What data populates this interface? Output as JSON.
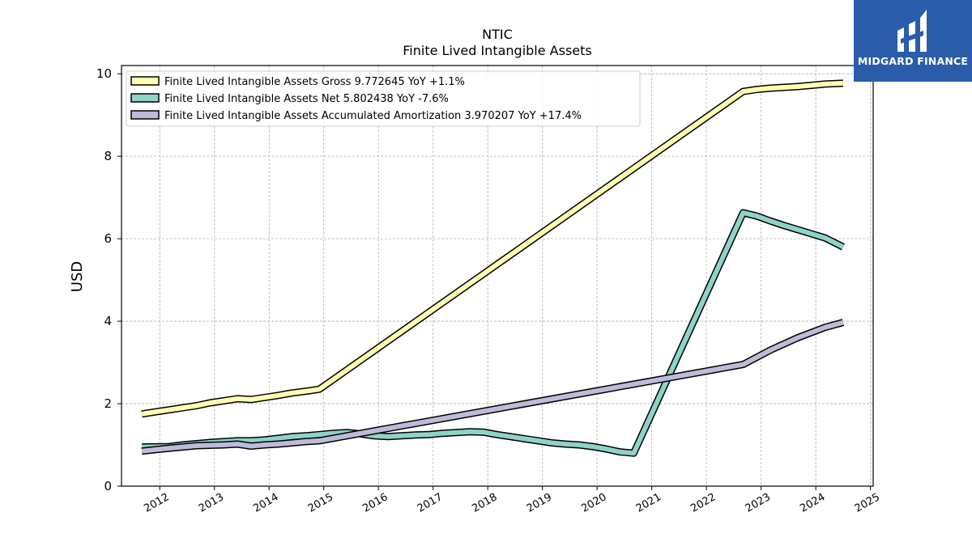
{
  "chart_data": {
    "type": "line",
    "title": "NTIC",
    "subtitle": "Finite Lived Intangible Assets",
    "ylabel": "USD",
    "xlabel": "",
    "xlim": [
      2011.3,
      2025.05
    ],
    "ylim": [
      0,
      10.2
    ],
    "x_ticks": [
      "2012",
      "2013",
      "2014",
      "2015",
      "2016",
      "2017",
      "2018",
      "2019",
      "2020",
      "2021",
      "2022",
      "2023",
      "2024",
      "2025"
    ],
    "y_ticks": [
      "0",
      "2",
      "4",
      "6",
      "8",
      "10"
    ],
    "grid": true,
    "legend_position": "top-left",
    "series": [
      {
        "name": "Finite Lived Intangible Assets Gross",
        "legend_label": "Finite Lived Intangible Assets Gross  9.772645 YoY +1.1%",
        "color": "#ffffb3",
        "x": [
          2011.67,
          2011.92,
          2012.17,
          2012.42,
          2012.67,
          2012.92,
          2013.17,
          2013.42,
          2013.67,
          2013.92,
          2014.17,
          2014.42,
          2014.67,
          2014.92,
          2022.67,
          2022.92,
          2023.17,
          2023.42,
          2023.67,
          2023.92,
          2024.17,
          2024.5
        ],
        "y": [
          1.75,
          1.8,
          1.85,
          1.9,
          1.95,
          2.02,
          2.07,
          2.12,
          2.1,
          2.15,
          2.2,
          2.26,
          2.3,
          2.35,
          9.57,
          9.62,
          9.65,
          9.67,
          9.69,
          9.72,
          9.75,
          9.77
        ]
      },
      {
        "name": "Finite Lived Intangible Assets Net",
        "legend_label": "Finite Lived Intangible Assets Net  5.802438 YoY -7.6%",
        "color": "#8dd3c7",
        "x": [
          2011.67,
          2012.17,
          2012.42,
          2012.92,
          2013.42,
          2013.67,
          2013.92,
          2014.17,
          2014.42,
          2014.67,
          2014.92,
          2015.17,
          2015.42,
          2015.67,
          2015.92,
          2016.17,
          2016.42,
          2016.67,
          2016.92,
          2017.17,
          2017.42,
          2017.67,
          2017.92,
          2018.17,
          2018.42,
          2018.67,
          2018.92,
          2019.17,
          2019.42,
          2019.67,
          2019.92,
          2020.17,
          2020.42,
          2020.67,
          2022.67,
          2022.92,
          2023.17,
          2023.42,
          2023.67,
          2023.92,
          2024.17,
          2024.5
        ],
        "y": [
          0.95,
          0.96,
          1.0,
          1.06,
          1.1,
          1.1,
          1.12,
          1.16,
          1.2,
          1.22,
          1.25,
          1.28,
          1.3,
          1.27,
          1.22,
          1.2,
          1.22,
          1.24,
          1.25,
          1.28,
          1.3,
          1.32,
          1.31,
          1.25,
          1.2,
          1.15,
          1.1,
          1.05,
          1.02,
          1.0,
          0.96,
          0.9,
          0.83,
          0.8,
          6.63,
          6.55,
          6.43,
          6.32,
          6.22,
          6.12,
          6.02,
          5.8
        ]
      },
      {
        "name": "Finite Lived Intangible Assets Accumulated Amortization",
        "legend_label": "Finite Lived Intangible Assets Accumulated Amortization  3.970207 YoY +17.4%",
        "color": "#bebada",
        "x": [
          2011.67,
          2012.17,
          2012.67,
          2013.17,
          2013.42,
          2013.67,
          2013.92,
          2014.17,
          2014.42,
          2014.67,
          2014.92,
          2022.67,
          2023.17,
          2023.67,
          2024.17,
          2024.5
        ],
        "y": [
          0.85,
          0.92,
          0.98,
          1.0,
          1.02,
          0.97,
          1.0,
          1.02,
          1.05,
          1.08,
          1.1,
          2.95,
          3.3,
          3.6,
          3.85,
          3.97
        ]
      }
    ]
  },
  "logo": {
    "text": "MIDGARD FINANCE",
    "color": "#2a5caa"
  }
}
